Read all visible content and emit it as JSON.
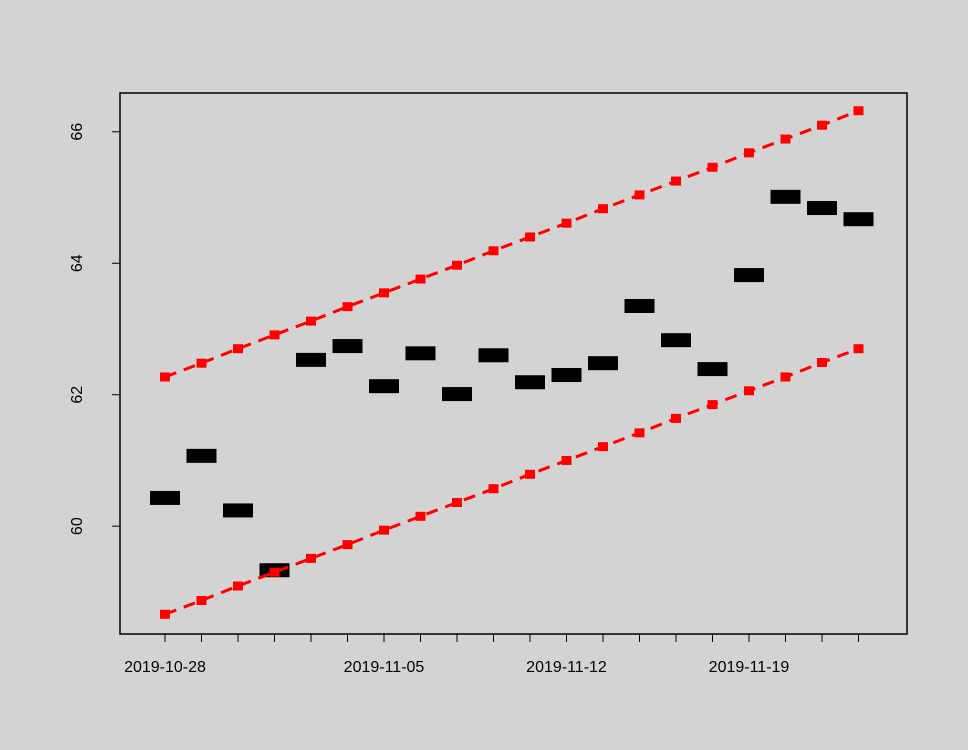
{
  "chart_data": {
    "type": "line",
    "categories": [
      "2019-10-28",
      null,
      null,
      null,
      null,
      null,
      "2019-11-05",
      null,
      null,
      null,
      null,
      "2019-11-12",
      null,
      null,
      null,
      null,
      "2019-11-19",
      null,
      null,
      null
    ],
    "series": [
      {
        "color": "#000000",
        "line_style": "none",
        "marker": "wide-rect",
        "values": [
          60.43,
          61.07,
          60.24,
          59.33,
          62.53,
          62.74,
          62.13,
          62.63,
          62.01,
          62.6,
          62.19,
          62.3,
          62.48,
          63.35,
          62.83,
          62.39,
          63.82,
          65.01,
          64.84,
          64.67
        ]
      },
      {
        "color": "#ff0000",
        "line_style": "dashed",
        "marker": "square",
        "values": [
          62.27,
          62.48,
          62.7,
          62.91,
          63.12,
          63.34,
          63.55,
          63.76,
          63.97,
          64.19,
          64.4,
          64.61,
          64.83,
          65.04,
          65.25,
          65.46,
          65.68,
          65.89,
          66.1,
          66.32
        ]
      },
      {
        "color": "#ff0000",
        "line_style": "dashed",
        "marker": "square",
        "values": [
          58.66,
          58.87,
          59.09,
          59.3,
          59.51,
          59.72,
          59.94,
          60.15,
          60.36,
          60.57,
          60.79,
          61.0,
          61.21,
          61.42,
          61.64,
          61.85,
          62.06,
          62.27,
          62.49,
          62.7
        ]
      }
    ],
    "ylim": [
      58.36,
      66.59
    ],
    "yticks": [
      60,
      62,
      64,
      66
    ],
    "grid": false
  }
}
